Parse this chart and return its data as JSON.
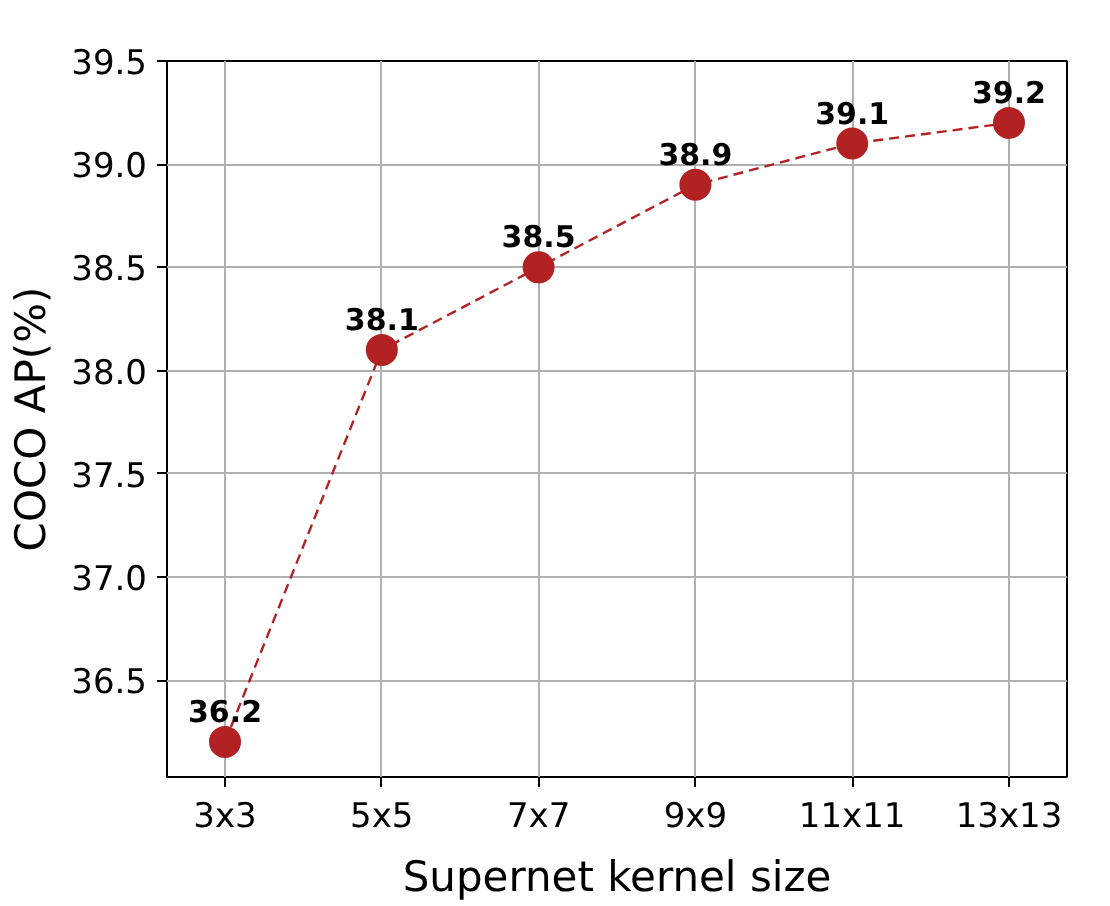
{
  "chart_data": {
    "type": "line",
    "xlabel": "Supernet kernel size",
    "ylabel": "COCO AP(%)",
    "categories": [
      "3x3",
      "5x5",
      "7x7",
      "9x9",
      "11x11",
      "13x13"
    ],
    "series": [
      {
        "color": "#b22222",
        "values": [
          36.2,
          38.1,
          38.5,
          38.9,
          39.1,
          39.2
        ]
      }
    ],
    "ylim": [
      36.03,
      39.5
    ],
    "yticks": [
      36.5,
      {
        "value": 37,
        "label": "37.0"
      },
      37.5,
      {
        "value": 38,
        "label": "38.0"
      },
      38.5,
      {
        "value": 39,
        "label": "39.0"
      },
      39.5
    ],
    "grid": true,
    "marker": "circle",
    "line_style": "dashed",
    "data_labels": true
  }
}
